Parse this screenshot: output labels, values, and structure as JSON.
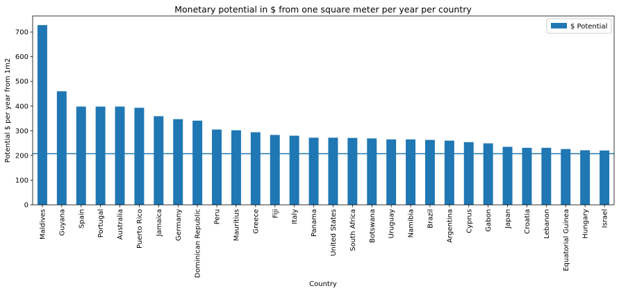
{
  "chart_data": {
    "type": "bar",
    "title": "Monetary potential in $ from one square meter per year per country",
    "xlabel": "Country",
    "ylabel": "Potential $ per year from 1m2",
    "ylim": [
      0,
      765
    ],
    "yticks": [
      0,
      100,
      200,
      300,
      400,
      500,
      600,
      700
    ],
    "grid": false,
    "legend_position": "top-right",
    "reference_line_y": 207,
    "colors": {
      "bar": "#1f77b4",
      "reference_line": "#1f77b4"
    },
    "categories": [
      "Maldives",
      "Guyana",
      "Spain",
      "Portugal",
      "Australia",
      "Puerto Rico",
      "Jamaica",
      "Germany",
      "Dominican Republic",
      "Peru",
      "Mauritius",
      "Greece",
      "Fiji",
      "Italy",
      "Panama",
      "United States",
      "South Africa",
      "Botswana",
      "Uruguay",
      "Namibia",
      "Brazil",
      "Argentina",
      "Cyprus",
      "Gabon",
      "Japan",
      "Croatia",
      "Lebanon",
      "Equatorial Guinea",
      "Hungary",
      "Israel"
    ],
    "series": [
      {
        "name": "$ Potential",
        "values": [
          728,
          460,
          398,
          398,
          398,
          393,
          359,
          347,
          341,
          305,
          302,
          294,
          283,
          280,
          272,
          272,
          271,
          269,
          265,
          265,
          263,
          260,
          254,
          249,
          235,
          231,
          231,
          226,
          221,
          220
        ]
      }
    ]
  }
}
